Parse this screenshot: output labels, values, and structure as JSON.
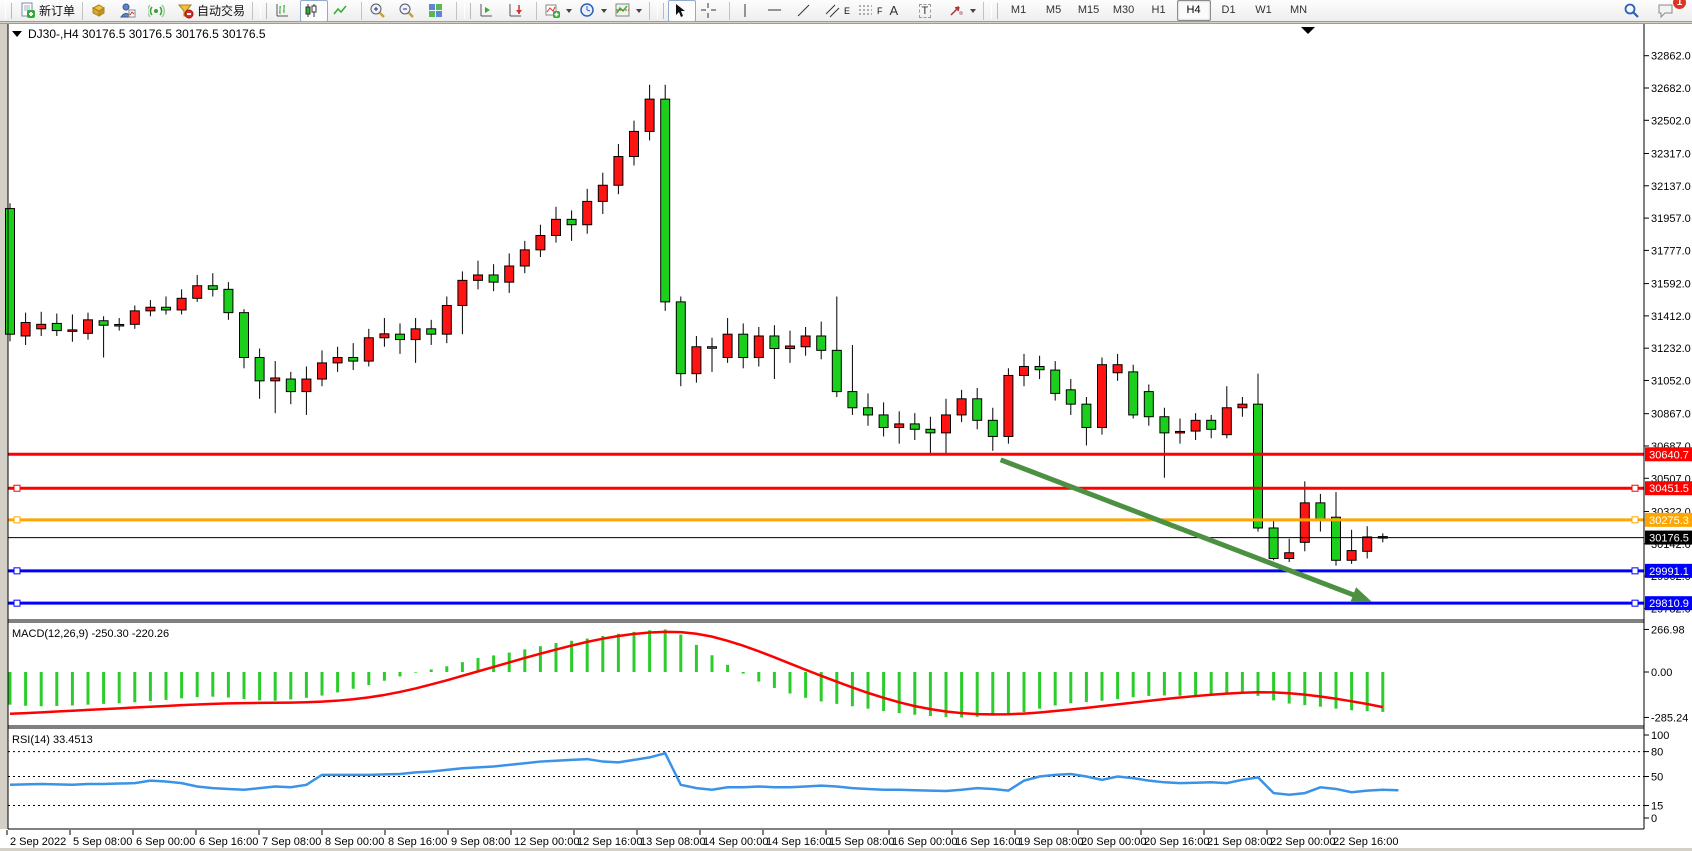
{
  "window": {
    "info_dropdown": "chart-symbol-menu",
    "info_symbol": "DJ30-,H4",
    "info_ohlc": "30176.5 30176.5 30176.5 30176.5"
  },
  "toolbar": {
    "new_order_label": "新订单",
    "autotrade_label": "自动交易",
    "tool_letters": {
      "channel": "E",
      "fibo": "F",
      "text": "A",
      "label": "T"
    },
    "timeframes": [
      "M1",
      "M5",
      "M15",
      "M30",
      "H1",
      "H4",
      "D1",
      "W1",
      "MN"
    ],
    "active_timeframe": "H4",
    "badge_count": "1"
  },
  "chart_data": {
    "type": "candlestick+indicators",
    "symbol": "DJ30-",
    "period": "H4",
    "colors": {
      "bull": "#ff1414",
      "bear": "#1dcf1d",
      "wick": "#000000",
      "macd_hist": "#2ccc2c",
      "macd_signal": "#ff0000",
      "rsi_line": "#3b93e8",
      "arrow": "#4c9141",
      "bg": "#ffffff"
    },
    "price_axis": [
      32862.0,
      32682.0,
      32502.0,
      32317.0,
      32137.0,
      31957.0,
      31777.0,
      31592.0,
      31412.0,
      31232.0,
      31052.0,
      30867.0,
      30687.0,
      30507.0,
      30322.0,
      30142.0,
      29962.0,
      29782.0
    ],
    "time_labels": [
      "2 Sep 2022",
      "5 Sep 08:00",
      "6 Sep 00:00",
      "6 Sep 16:00",
      "7 Sep 08:00",
      "8 Sep 00:00",
      "8 Sep 16:00",
      "9 Sep 08:00",
      "12 Sep 00:00",
      "12 Sep 16:00",
      "13 Sep 08:00",
      "14 Sep 00:00",
      "14 Sep 16:00",
      "15 Sep 08:00",
      "16 Sep 00:00",
      "16 Sep 16:00",
      "19 Sep 08:00",
      "20 Sep 00:00",
      "20 Sep 16:00",
      "21 Sep 08:00",
      "22 Sep 00:00",
      "22 Sep 16:00"
    ],
    "candles": [
      [
        32010,
        32040,
        31270,
        31310
      ],
      [
        31300,
        31430,
        31250,
        31375
      ],
      [
        31340,
        31435,
        31300,
        31365
      ],
      [
        31370,
        31425,
        31300,
        31330
      ],
      [
        31330,
        31420,
        31268,
        31334
      ],
      [
        31315,
        31430,
        31280,
        31390
      ],
      [
        31385,
        31410,
        31180,
        31360
      ],
      [
        31358,
        31400,
        31330,
        31364
      ],
      [
        31365,
        31470,
        31340,
        31440
      ],
      [
        31440,
        31500,
        31410,
        31460
      ],
      [
        31460,
        31520,
        31420,
        31445
      ],
      [
        31445,
        31560,
        31420,
        31510
      ],
      [
        31510,
        31640,
        31490,
        31580
      ],
      [
        31580,
        31650,
        31520,
        31560
      ],
      [
        31560,
        31600,
        31390,
        31430
      ],
      [
        31430,
        31450,
        31120,
        31180
      ],
      [
        31180,
        31230,
        30950,
        31050
      ],
      [
        31050,
        31160,
        30870,
        31066
      ],
      [
        31060,
        31100,
        30920,
        30990
      ],
      [
        30990,
        31130,
        30860,
        31060
      ],
      [
        31060,
        31220,
        31020,
        31150
      ],
      [
        31150,
        31240,
        31100,
        31180
      ],
      [
        31180,
        31260,
        31110,
        31160
      ],
      [
        31160,
        31340,
        31130,
        31290
      ],
      [
        31290,
        31400,
        31240,
        31312
      ],
      [
        31310,
        31370,
        31200,
        31280
      ],
      [
        31280,
        31400,
        31150,
        31340
      ],
      [
        31340,
        31390,
        31250,
        31310
      ],
      [
        31310,
        31520,
        31260,
        31470
      ],
      [
        31470,
        31660,
        31310,
        31610
      ],
      [
        31610,
        31720,
        31560,
        31640
      ],
      [
        31640,
        31700,
        31550,
        31600
      ],
      [
        31600,
        31760,
        31540,
        31690
      ],
      [
        31690,
        31830,
        31650,
        31780
      ],
      [
        31780,
        31920,
        31740,
        31860
      ],
      [
        31860,
        32020,
        31820,
        31950
      ],
      [
        31950,
        32000,
        31830,
        31920
      ],
      [
        31920,
        32120,
        31870,
        32050
      ],
      [
        32050,
        32210,
        31980,
        32140
      ],
      [
        32140,
        32370,
        32090,
        32300
      ],
      [
        32300,
        32500,
        32250,
        32440
      ],
      [
        32440,
        32700,
        32390,
        32620
      ],
      [
        32620,
        32700,
        31440,
        31490
      ],
      [
        31490,
        31520,
        31020,
        31090
      ],
      [
        31090,
        31300,
        31040,
        31240
      ],
      [
        31240,
        31290,
        31100,
        31232
      ],
      [
        31180,
        31400,
        31150,
        31310
      ],
      [
        31310,
        31370,
        31120,
        31180
      ],
      [
        31180,
        31350,
        31130,
        31300
      ],
      [
        31300,
        31360,
        31060,
        31230
      ],
      [
        31230,
        31330,
        31150,
        31244
      ],
      [
        31240,
        31350,
        31190,
        31300
      ],
      [
        31300,
        31380,
        31170,
        31220
      ],
      [
        31220,
        31520,
        30960,
        30990
      ],
      [
        30990,
        31250,
        30860,
        30900
      ],
      [
        30900,
        30980,
        30800,
        30860
      ],
      [
        30860,
        30930,
        30740,
        30790
      ],
      [
        30790,
        30880,
        30700,
        30810
      ],
      [
        30810,
        30870,
        30720,
        30780
      ],
      [
        30780,
        30850,
        30640,
        30760
      ],
      [
        30760,
        30950,
        30640,
        30860
      ],
      [
        30860,
        31000,
        30820,
        30950
      ],
      [
        30950,
        31010,
        30780,
        30830
      ],
      [
        30830,
        30900,
        30660,
        30740
      ],
      [
        30740,
        31120,
        30700,
        31080
      ],
      [
        31080,
        31200,
        31020,
        31130
      ],
      [
        31130,
        31190,
        31060,
        31112
      ],
      [
        31110,
        31160,
        30940,
        30980
      ],
      [
        31000,
        31060,
        30860,
        30920
      ],
      [
        30920,
        30960,
        30690,
        30790
      ],
      [
        30790,
        31180,
        30750,
        31140
      ],
      [
        31095,
        31200,
        31050,
        31140
      ],
      [
        31100,
        31140,
        30840,
        30860
      ],
      [
        30990,
        31030,
        30800,
        30850
      ],
      [
        30850,
        30900,
        30510,
        30760
      ],
      [
        30760,
        30840,
        30700,
        30768
      ],
      [
        30770,
        30870,
        30720,
        30830
      ],
      [
        30830,
        30860,
        30730,
        30780
      ],
      [
        30750,
        31020,
        30730,
        30900
      ],
      [
        30900,
        30960,
        30850,
        30920
      ],
      [
        30920,
        31090,
        30210,
        30230
      ],
      [
        30230,
        30280,
        30050,
        30060
      ],
      [
        30060,
        30170,
        30040,
        30092
      ],
      [
        30150,
        30490,
        30100,
        30370
      ],
      [
        30370,
        30420,
        30210,
        30280
      ],
      [
        30290,
        30430,
        30020,
        30050
      ],
      [
        30050,
        30220,
        30030,
        30104
      ],
      [
        30100,
        30240,
        30060,
        30180
      ],
      [
        30182,
        30200,
        30150,
        30176.5
      ]
    ],
    "hlines": [
      {
        "price": 30640.7,
        "label": "30640.7",
        "color": "#ff0000",
        "width": 3,
        "handles": false
      },
      {
        "price": 30451.5,
        "label": "30451.5",
        "color": "#ff0000",
        "width": 3,
        "handles": true
      },
      {
        "price": 30275.3,
        "label": "30275.3",
        "color": "#ffa500",
        "width": 3,
        "handles": true
      },
      {
        "price": 30176.5,
        "label": "30176.5",
        "color": "#000000",
        "width": 1,
        "handles": false
      },
      {
        "price": 29991.1,
        "label": "29991.1",
        "color": "#0000ff",
        "width": 3,
        "handles": true
      },
      {
        "price": 29810.9,
        "label": "29810.9",
        "color": "#0000ff",
        "width": 3,
        "handles": true
      }
    ],
    "trend_arrow": {
      "from_index": 63.5,
      "from_price": 30610,
      "to_index": 87.3,
      "to_price": 29818
    },
    "macd": {
      "label": "MACD(12,26,9) -250.30 -220.26",
      "current_macd": -250.3,
      "current_signal": -220.26,
      "axis": [
        266.98,
        0.0,
        -285.24
      ],
      "hist": [
        -205,
        -212,
        -215,
        -213,
        -210,
        -205,
        -200,
        -196,
        -190,
        -182,
        -175,
        -165,
        -158,
        -155,
        -160,
        -170,
        -178,
        -180,
        -172,
        -162,
        -148,
        -128,
        -105,
        -82,
        -55,
        -28,
        -4,
        16,
        36,
        62,
        88,
        104,
        122,
        142,
        162,
        182,
        196,
        210,
        226,
        240,
        252,
        262,
        267,
        235,
        170,
        105,
        45,
        -10,
        -60,
        -100,
        -135,
        -162,
        -185,
        -200,
        -215,
        -230,
        -245,
        -258,
        -268,
        -276,
        -282,
        -285,
        -281,
        -274,
        -266,
        -252,
        -230,
        -210,
        -196,
        -188,
        -180,
        -170,
        -158,
        -150,
        -147,
        -149,
        -147,
        -144,
        -138,
        -130,
        -150,
        -178,
        -198,
        -208,
        -218,
        -230,
        -240,
        -246,
        -250.3
      ],
      "signal": [
        -262,
        -258,
        -253,
        -248,
        -243,
        -238,
        -233,
        -228,
        -223,
        -218,
        -213,
        -208,
        -204,
        -200,
        -197,
        -195,
        -194,
        -193,
        -192,
        -190,
        -186,
        -180,
        -171,
        -159,
        -144,
        -125,
        -103,
        -78,
        -52,
        -24,
        4,
        32,
        60,
        88,
        115,
        141,
        166,
        189,
        209,
        226,
        239,
        248,
        252,
        250,
        240,
        222,
        196,
        165,
        130,
        92,
        53,
        14,
        -24,
        -61,
        -97,
        -131,
        -162,
        -190,
        -214,
        -233,
        -248,
        -258,
        -264,
        -266,
        -265,
        -261,
        -254,
        -245,
        -235,
        -225,
        -214,
        -203,
        -192,
        -181,
        -170,
        -160,
        -151,
        -143,
        -136,
        -130,
        -127,
        -128,
        -133,
        -142,
        -154,
        -168,
        -184,
        -201,
        -220.26
      ]
    },
    "rsi": {
      "label": "RSI(14) 33.4513",
      "current": 33.4513,
      "axis": [
        100,
        80,
        50,
        15,
        0
      ],
      "levels": [
        80,
        50,
        15
      ],
      "values": [
        40,
        40.5,
        41,
        40.5,
        40,
        41,
        41,
        41.5,
        42,
        45,
        44,
        42,
        38,
        36,
        35,
        34,
        36,
        38,
        37,
        40,
        52,
        52,
        52,
        52,
        52.5,
        53,
        55,
        56,
        58,
        60,
        61,
        62,
        64,
        66,
        68,
        69,
        70,
        71,
        68,
        67,
        70,
        73,
        78,
        40,
        36,
        34,
        37,
        37,
        38,
        37,
        37,
        38,
        39,
        38,
        36,
        35,
        34,
        34,
        33.5,
        33,
        32.5,
        34,
        36,
        35,
        33,
        45,
        50,
        52,
        53,
        50,
        46,
        50,
        48,
        45,
        43,
        42,
        42.5,
        43,
        42,
        46,
        49,
        30,
        28,
        30,
        37,
        35,
        31,
        33,
        34,
        33.45
      ]
    }
  }
}
